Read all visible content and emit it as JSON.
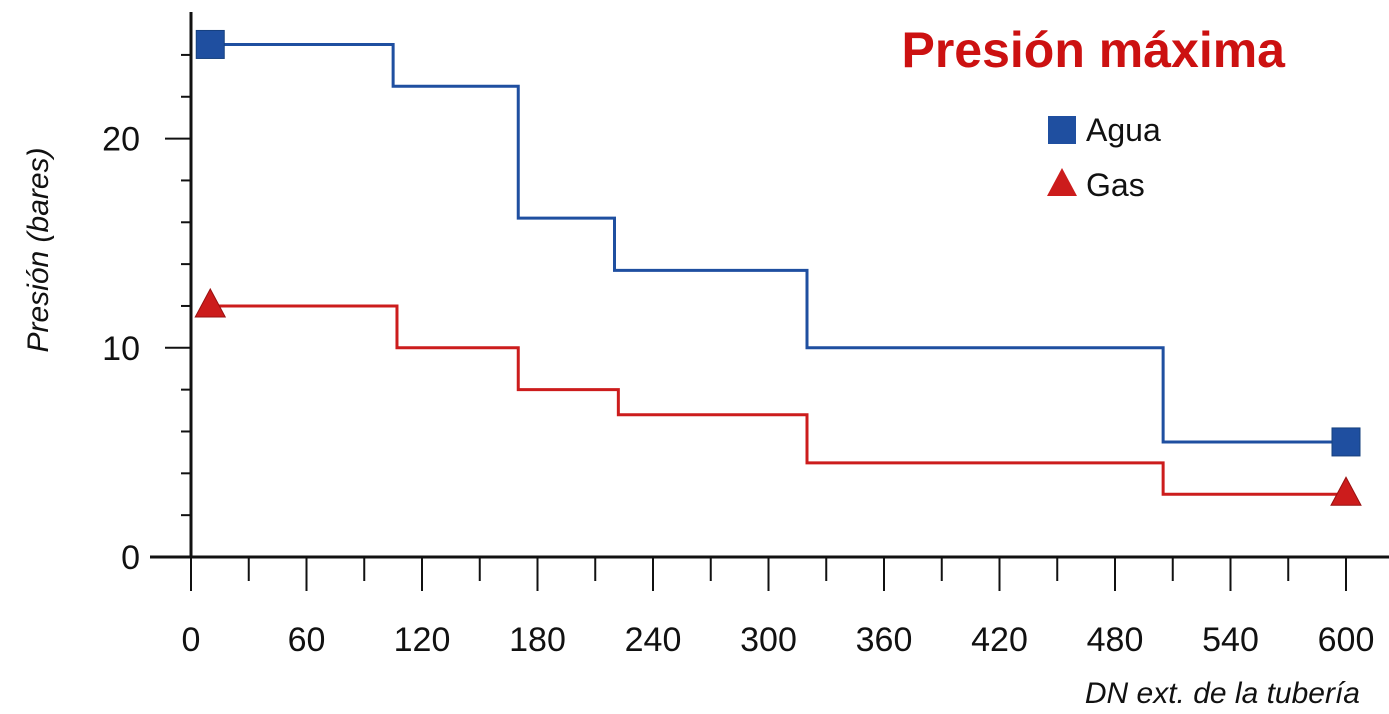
{
  "chart_data": {
    "type": "line",
    "title": "Presión máxima",
    "xlabel": "DN ext. de la tubería",
    "ylabel": "Presión (bares)",
    "xlim": [
      0,
      600
    ],
    "ylim": [
      0,
      25
    ],
    "x_ticks": [
      0,
      60,
      120,
      180,
      240,
      300,
      360,
      420,
      480,
      540,
      600
    ],
    "y_ticks": [
      0,
      10,
      20
    ],
    "step": "post",
    "legend_position": "top-right",
    "grid": false,
    "series": [
      {
        "name": "Agua",
        "color": "#1f4fa0",
        "marker": "square",
        "x": [
          10,
          105,
          170,
          220,
          320,
          505,
          600
        ],
        "y": [
          24.5,
          22.5,
          16.2,
          13.7,
          10.0,
          5.5,
          5.5
        ]
      },
      {
        "name": "Gas",
        "color": "#cc1c1c",
        "marker": "triangle",
        "x": [
          10,
          107,
          170,
          222,
          320,
          505,
          600
        ],
        "y": [
          12.0,
          10.0,
          8.0,
          6.8,
          4.5,
          3.0,
          3.0
        ]
      }
    ]
  }
}
